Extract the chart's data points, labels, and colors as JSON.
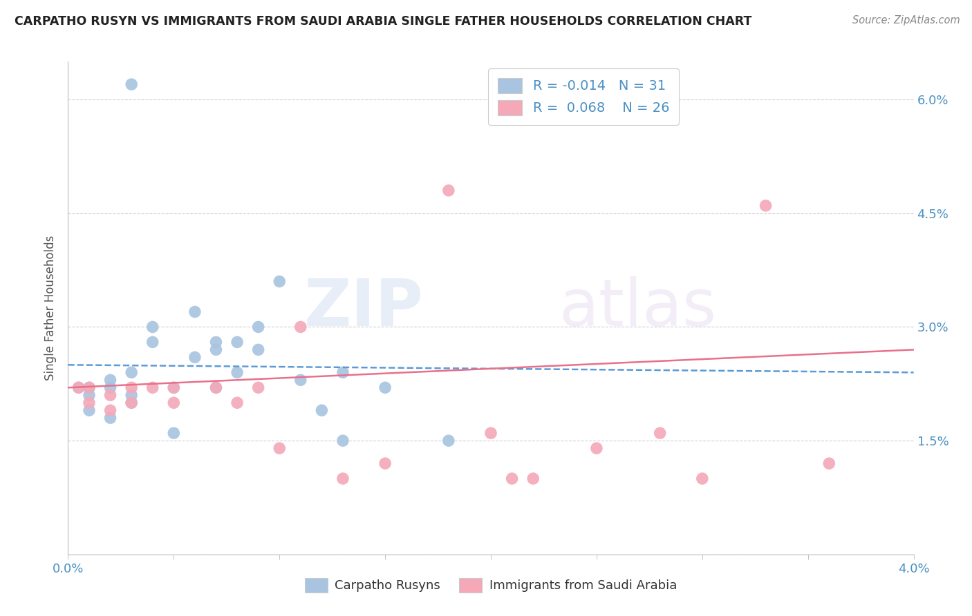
{
  "title": "CARPATHO RUSYN VS IMMIGRANTS FROM SAUDI ARABIA SINGLE FATHER HOUSEHOLDS CORRELATION CHART",
  "source": "Source: ZipAtlas.com",
  "ylabel": "Single Father Households",
  "x_min": 0.0,
  "x_max": 0.04,
  "y_min": 0.0,
  "y_max": 0.065,
  "x_ticks": [
    0.0,
    0.005,
    0.01,
    0.015,
    0.02,
    0.025,
    0.03,
    0.035,
    0.04
  ],
  "y_ticks": [
    0.0,
    0.015,
    0.03,
    0.045,
    0.06
  ],
  "y_tick_labels_right": [
    "",
    "1.5%",
    "3.0%",
    "4.5%",
    "6.0%"
  ],
  "blue_color": "#a8c4e0",
  "pink_color": "#f4a8b8",
  "blue_line_color": "#5b9bd5",
  "pink_line_color": "#e8708a",
  "legend_R_blue": "-0.014",
  "legend_N_blue": "31",
  "legend_R_pink": "0.068",
  "legend_N_pink": "26",
  "legend_label_blue": "Carpatho Rusyns",
  "legend_label_pink": "Immigrants from Saudi Arabia",
  "watermark_zip": "ZIP",
  "watermark_atlas": "atlas",
  "blue_scatter_x": [
    0.0005,
    0.001,
    0.001,
    0.001,
    0.002,
    0.002,
    0.002,
    0.003,
    0.003,
    0.003,
    0.004,
    0.004,
    0.005,
    0.005,
    0.006,
    0.006,
    0.007,
    0.007,
    0.007,
    0.008,
    0.008,
    0.009,
    0.009,
    0.01,
    0.011,
    0.012,
    0.013,
    0.013,
    0.015,
    0.018,
    0.003
  ],
  "blue_scatter_y": [
    0.022,
    0.022,
    0.021,
    0.019,
    0.023,
    0.022,
    0.018,
    0.024,
    0.021,
    0.02,
    0.03,
    0.028,
    0.022,
    0.016,
    0.026,
    0.032,
    0.028,
    0.027,
    0.022,
    0.028,
    0.024,
    0.03,
    0.027,
    0.036,
    0.023,
    0.019,
    0.015,
    0.024,
    0.022,
    0.015,
    0.062
  ],
  "pink_scatter_x": [
    0.0005,
    0.001,
    0.001,
    0.002,
    0.002,
    0.003,
    0.003,
    0.004,
    0.005,
    0.005,
    0.007,
    0.008,
    0.009,
    0.01,
    0.011,
    0.013,
    0.015,
    0.018,
    0.02,
    0.021,
    0.022,
    0.025,
    0.028,
    0.03,
    0.033,
    0.036
  ],
  "pink_scatter_y": [
    0.022,
    0.022,
    0.02,
    0.021,
    0.019,
    0.022,
    0.02,
    0.022,
    0.022,
    0.02,
    0.022,
    0.02,
    0.022,
    0.014,
    0.03,
    0.01,
    0.012,
    0.048,
    0.016,
    0.01,
    0.01,
    0.014,
    0.016,
    0.01,
    0.046,
    0.012
  ],
  "blue_line_y_start": 0.025,
  "blue_line_y_end": 0.024,
  "pink_line_y_start": 0.022,
  "pink_line_y_end": 0.027,
  "background_color": "#ffffff",
  "grid_color": "#d0d0d0"
}
